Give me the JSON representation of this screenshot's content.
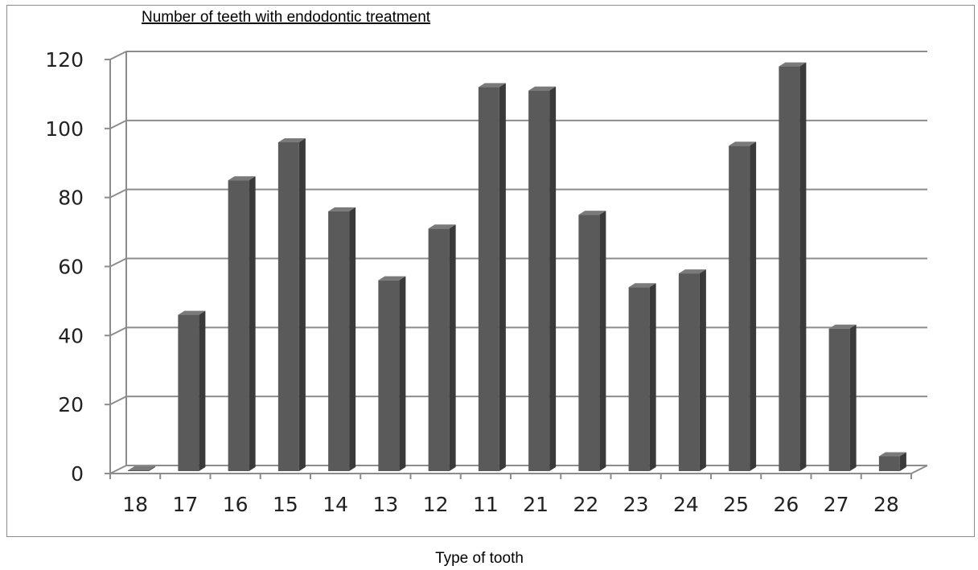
{
  "chart_data": {
    "type": "bar",
    "title": "Number of teeth with endodontic treatment",
    "xlabel": "Type of tooth",
    "ylabel": "",
    "categories": [
      "18",
      "17",
      "16",
      "15",
      "14",
      "13",
      "12",
      "11",
      "21",
      "22",
      "23",
      "24",
      "25",
      "26",
      "27",
      "28"
    ],
    "values": [
      0,
      46,
      85,
      96,
      76,
      56,
      71,
      112,
      111,
      75,
      54,
      58,
      95,
      118,
      42,
      5
    ],
    "ylim": [
      0,
      120
    ],
    "yticks": [
      "0",
      "20",
      "40",
      "60",
      "80",
      "100",
      "120"
    ],
    "grid": true,
    "legend": "none",
    "colors": {
      "bar_front": "#5a5a5a",
      "bar_side": "#3a3a3a",
      "bar_top": "#7a7a7a",
      "grid": "#8c8c8c",
      "axis": "#8c8c8c"
    }
  }
}
